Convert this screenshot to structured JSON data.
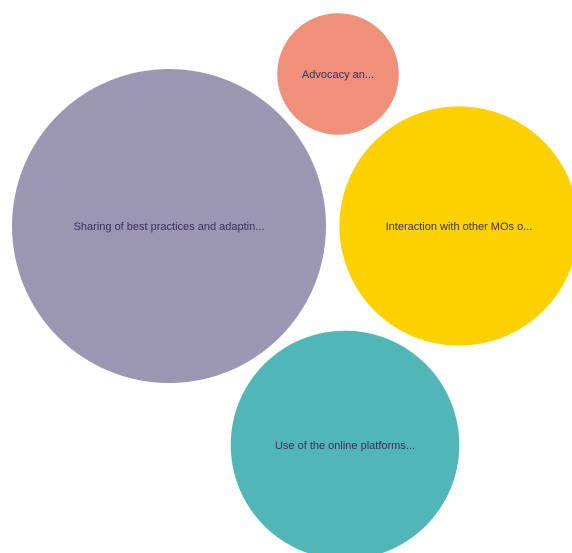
{
  "chart_data": {
    "type": "bubble",
    "title": "",
    "bubbles": [
      {
        "label": "Sharing of best practices and adaptin...",
        "value": 100,
        "color": "#9b97b2"
      },
      {
        "label": "Interaction with other MOs o...",
        "value": 58,
        "color": "#fdd000"
      },
      {
        "label": "Use of the online platforms...",
        "value": 53,
        "color": "#51b7b6"
      },
      {
        "label": "Advocacy an...",
        "value": 15,
        "color": "#f08f7a"
      }
    ]
  }
}
